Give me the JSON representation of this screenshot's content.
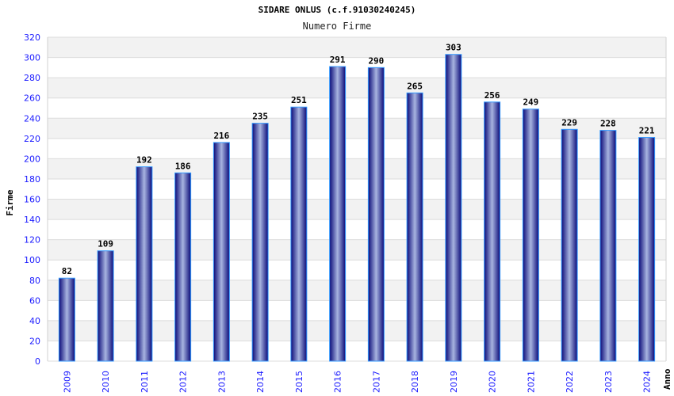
{
  "chart_data": {
    "type": "bar",
    "title": "SIDARE ONLUS (c.f.91030240245)",
    "subtitle": "Numero Firme",
    "xlabel": "Anno",
    "ylabel": "Firme",
    "ylim": [
      0,
      320
    ],
    "yticks": [
      0,
      20,
      40,
      60,
      80,
      100,
      120,
      140,
      160,
      180,
      200,
      220,
      240,
      260,
      280,
      300,
      320
    ],
    "categories": [
      "2009",
      "2010",
      "2011",
      "2012",
      "2013",
      "2014",
      "2015",
      "2016",
      "2017",
      "2018",
      "2019",
      "2020",
      "2021",
      "2022",
      "2023",
      "2024"
    ],
    "values": [
      82,
      109,
      192,
      186,
      216,
      235,
      251,
      291,
      290,
      265,
      303,
      256,
      249,
      229,
      228,
      221
    ],
    "grid": true,
    "colors": {
      "bar_edge": "#0a0a78",
      "bar_center": "#a8b4e0",
      "bar_border": "#3399ff",
      "tick_text": "#1a1aff",
      "band": "#f2f2f2"
    }
  }
}
